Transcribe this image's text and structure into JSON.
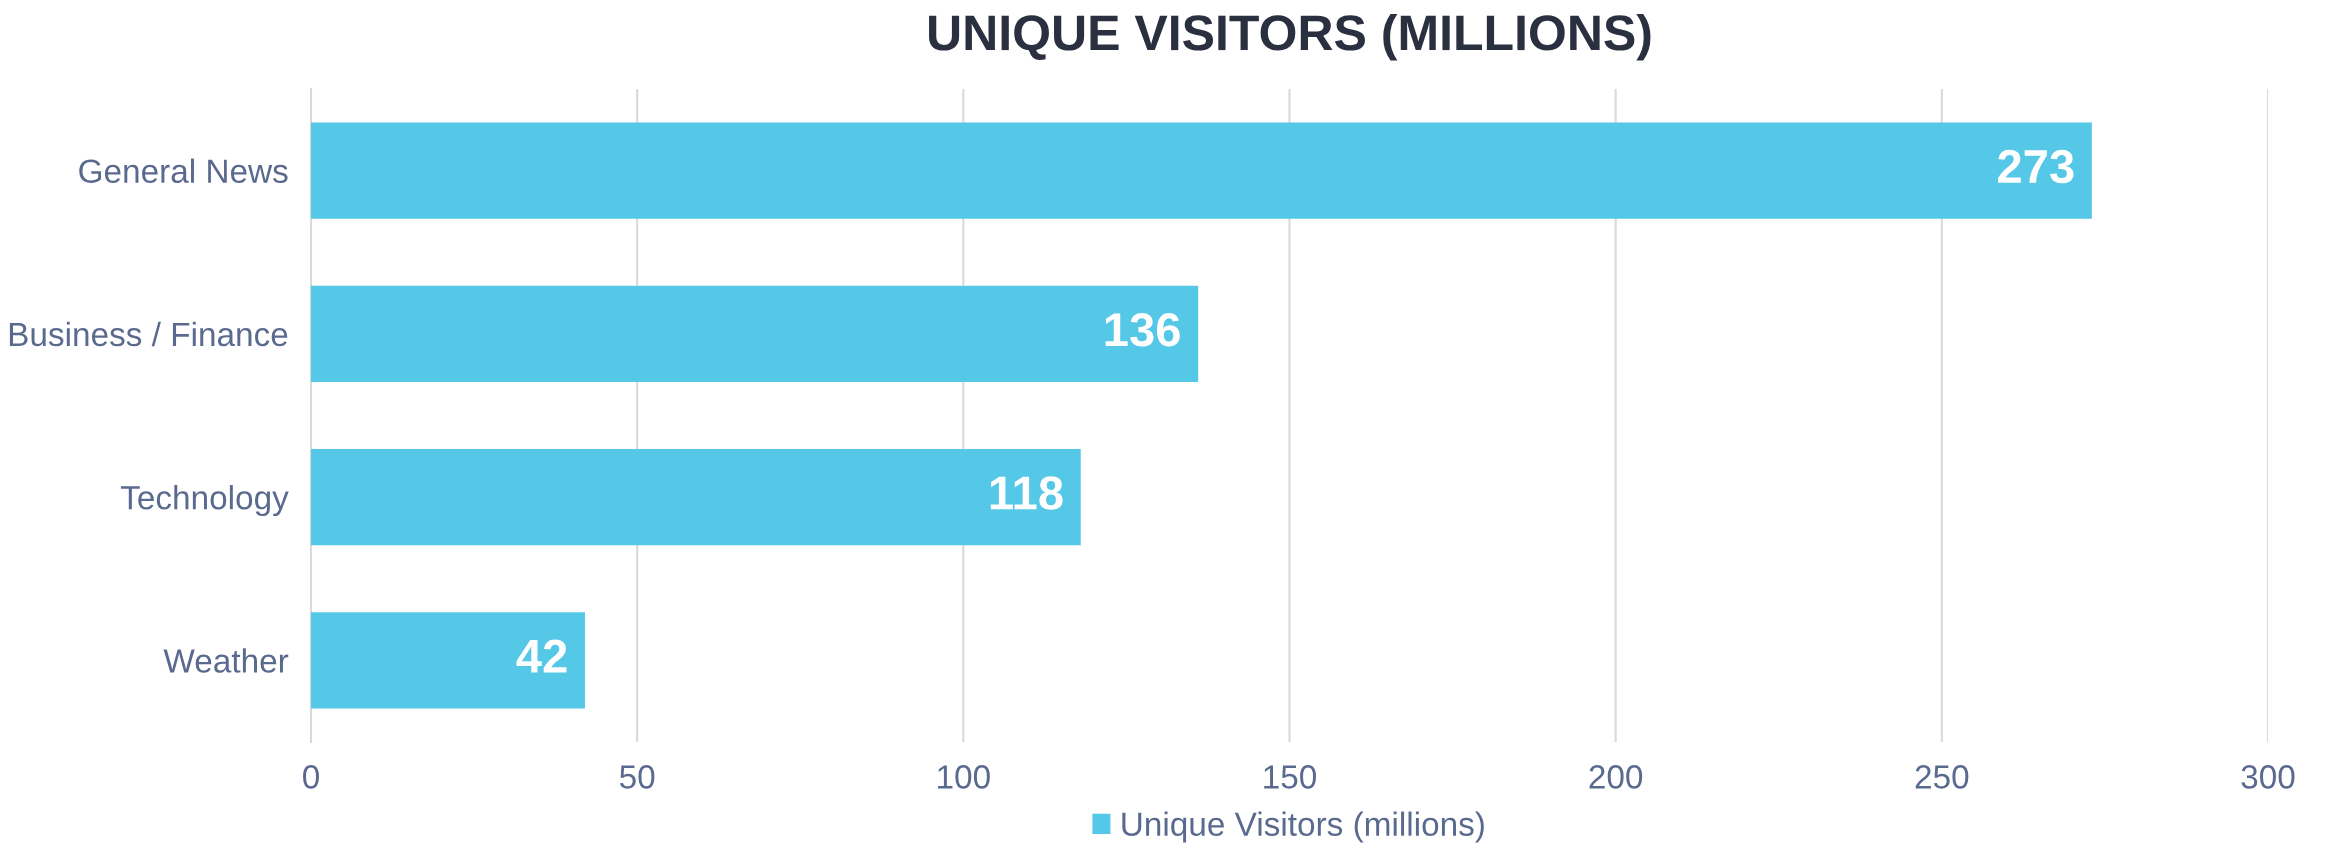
{
  "chart_data": {
    "type": "bar",
    "title": "UNIQUE VISITORS (MILLIONS)",
    "orientation": "horizontal",
    "categories": [
      "General News",
      "Business / Finance",
      "Technology",
      "Weather"
    ],
    "series": [
      {
        "name": "Unique Visitors (millions)",
        "color": "#55c8e8",
        "values": [
          273,
          136,
          118,
          42
        ]
      }
    ],
    "xlim": [
      0,
      300
    ],
    "xticks": [
      0,
      50,
      100,
      150,
      200,
      250,
      300
    ],
    "grid": "x",
    "legend": "bottom",
    "data_labels": true
  }
}
